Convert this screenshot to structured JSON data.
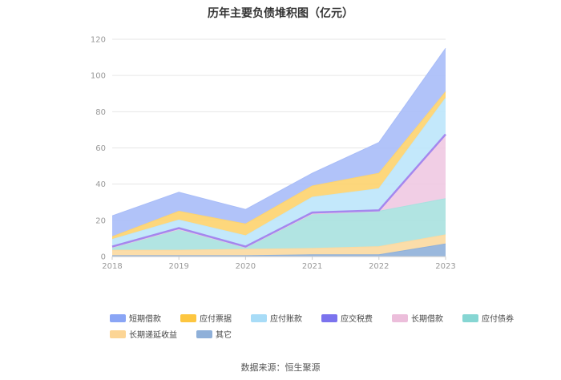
{
  "title": "历年主要负债堆积图（亿元）",
  "source": "数据来源：恒生聚源",
  "chart_data": {
    "type": "area",
    "stacked": true,
    "title": "历年主要负债堆积图（亿元）",
    "xlabel": "",
    "ylabel": "",
    "ylim": [
      0,
      120
    ],
    "yticks": [
      0,
      20,
      40,
      60,
      80,
      100,
      120
    ],
    "grid": true,
    "legend_position": "bottom",
    "x": [
      "2018",
      "2019",
      "2020",
      "2021",
      "2022",
      "2023"
    ],
    "series": [
      {
        "name": "其它",
        "color": "#8fb0d9",
        "values": [
          0.5,
          0.5,
          0.5,
          1,
          1,
          7
        ]
      },
      {
        "name": "长期递延收益",
        "color": "#fbd9a0",
        "values": [
          3,
          3,
          3.5,
          3.5,
          4.5,
          5
        ]
      },
      {
        "name": "应付债券",
        "color": "#a8e1df",
        "values": [
          1.5,
          11.5,
          1,
          19,
          19.5,
          20
        ]
      },
      {
        "name": "长期借款",
        "color": "#f0c9e2",
        "values": [
          0,
          0,
          0,
          0,
          0,
          35
        ]
      },
      {
        "name": "应交税费",
        "color": "#9a8ff0",
        "values": [
          0.5,
          0.7,
          0.5,
          0.8,
          0.5,
          0.5
        ]
      },
      {
        "name": "应付账款",
        "color": "#bde6fb",
        "values": [
          4,
          4.5,
          6,
          8.5,
          12,
          20
        ]
      },
      {
        "name": "应付票据",
        "color": "#fdd36e",
        "values": [
          1.5,
          4.8,
          6.5,
          6.2,
          8.5,
          3.5
        ]
      },
      {
        "name": "短期借款",
        "color": "#a9bdf8",
        "values": [
          11.5,
          10.5,
          8,
          7,
          17,
          24
        ]
      }
    ],
    "legend": [
      {
        "name": "短期借款",
        "color": "#8aa5f5"
      },
      {
        "name": "应付票据",
        "color": "#fdc640"
      },
      {
        "name": "应付账款",
        "color": "#a8dcf7"
      },
      {
        "name": "应交税费",
        "color": "#7b73ee"
      },
      {
        "name": "长期借款",
        "color": "#ecbedb"
      },
      {
        "name": "应付债券",
        "color": "#86d6d3"
      },
      {
        "name": "长期递延收益",
        "color": "#fcd595"
      },
      {
        "name": "其它",
        "color": "#8fb0d9"
      }
    ]
  }
}
